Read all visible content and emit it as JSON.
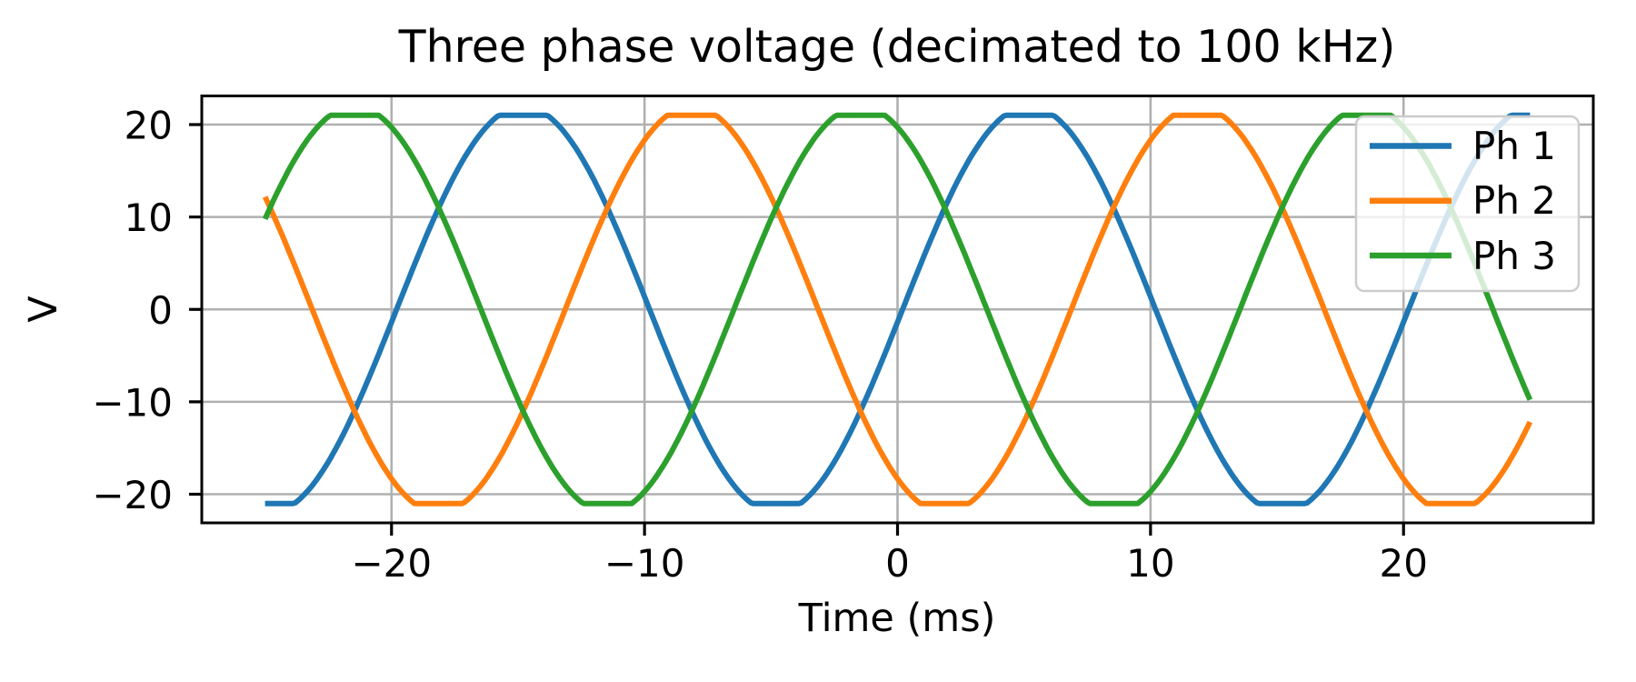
{
  "figure": {
    "title": "Three phase voltage (decimated to 100 kHz)"
  },
  "axes": {
    "xlabel": "Time (ms)",
    "ylabel": "V",
    "xtick_labels": [
      "−20",
      "−10",
      "0",
      "10",
      "20"
    ],
    "ytick_labels": [
      "20",
      "10",
      "0",
      "−10",
      "−20"
    ]
  },
  "chart_data": {
    "type": "line",
    "title": "Three phase voltage (decimated to 100 kHz)",
    "xlabel": "Time (ms)",
    "ylabel": "V",
    "xlim": [
      -27.5,
      27.5
    ],
    "ylim": [
      -23.1,
      23.1
    ],
    "xticks": [
      -20,
      -10,
      0,
      10,
      20
    ],
    "yticks": [
      20,
      10,
      0,
      -10,
      -20
    ],
    "grid": true,
    "grid_color": "#b0b0b0",
    "legend_position": "upper right",
    "x_unit": "ms",
    "y_unit": "V",
    "x_start": -25,
    "x_step": 1,
    "series": [
      {
        "name": "Ph 1",
        "color": "#1f77b4",
        "values": [
          -21,
          -21,
          -18.58,
          -14.02,
          -8.1,
          -1.38,
          5.47,
          11.79,
          16.95,
          20.46,
          21,
          21,
          18.58,
          14.02,
          8.1,
          1.38,
          -5.47,
          -11.79,
          -16.95,
          -20.46,
          -21,
          -21,
          -18.58,
          -14.02,
          -8.1,
          -1.38,
          5.47,
          11.79,
          16.95,
          20.46,
          21,
          21,
          18.58,
          14.02,
          8.1,
          1.38,
          -5.47,
          -11.79,
          -16.95,
          -20.46,
          -21,
          -21,
          -18.58,
          -14.02,
          -8.1,
          -1.38,
          5.47,
          11.79,
          16.95,
          20.46,
          21
        ]
      },
      {
        "name": "Ph 2",
        "color": "#ff7f0e",
        "values": [
          12.17,
          5.92,
          -0.92,
          -7.67,
          -13.66,
          -18.32,
          -21,
          -21,
          -20.62,
          -17.24,
          -12.17,
          -5.92,
          0.92,
          7.67,
          13.66,
          18.32,
          21,
          21,
          20.62,
          17.24,
          12.17,
          5.92,
          -0.92,
          -7.67,
          -13.66,
          -18.32,
          -21,
          -21,
          -20.62,
          -17.24,
          -12.17,
          -5.92,
          0.92,
          7.67,
          13.66,
          18.32,
          21,
          21,
          20.62,
          17.24,
          12.17,
          5.92,
          -0.92,
          -7.67,
          -13.66,
          -18.32,
          -21,
          -21,
          -20.62,
          -17.24,
          -12.17
        ]
      },
      {
        "name": "Ph 3",
        "color": "#2ca02c",
        "values": [
          9.78,
          15.39,
          19.5,
          21,
          21,
          19.71,
          15.72,
          10.19,
          3.67,
          -3.21,
          -9.78,
          -15.39,
          -19.5,
          -21,
          -21,
          -19.71,
          -15.72,
          -10.19,
          -3.67,
          3.21,
          9.78,
          15.39,
          19.5,
          21,
          21,
          19.71,
          15.72,
          10.19,
          3.67,
          -3.21,
          -9.78,
          -15.39,
          -19.5,
          -21,
          -21,
          -19.71,
          -15.72,
          -10.19,
          -3.67,
          3.21,
          9.78,
          15.39,
          19.5,
          21,
          21,
          19.71,
          15.72,
          10.19,
          3.67,
          -3.21,
          -9.78
        ]
      }
    ],
    "generator": {
      "type": "clipped_sine",
      "amplitude_v": 22,
      "clip_v": 21,
      "period_ms": 20,
      "frequency_hz": 50,
      "time_shift_ms": 0.2,
      "phase_deg": [
        0,
        -120,
        120
      ],
      "t_range_ms": [
        -25,
        25
      ],
      "draw_step_ms": 0.1
    }
  }
}
